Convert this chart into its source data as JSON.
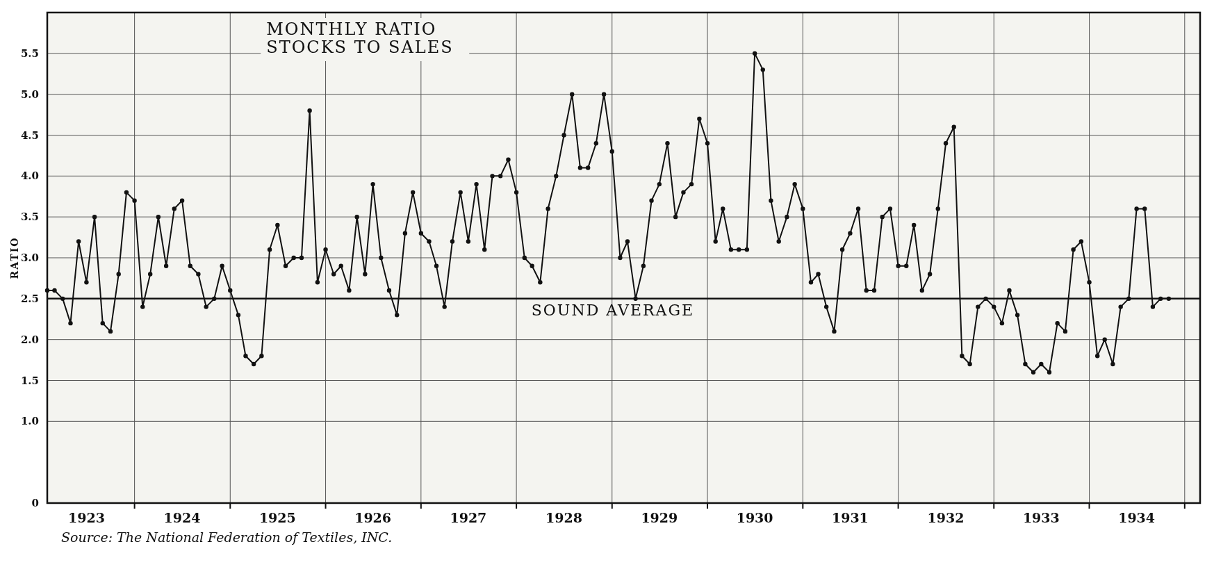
{
  "chart_data": {
    "type": "line",
    "title": "MONTHLY RATIO\nSTOCKS TO SALES",
    "ylabel": "RATIO",
    "annotations": [
      "Source: The National Federation of Textiles, INC."
    ],
    "x": [
      "1923-02",
      "1923-03",
      "1923-04",
      "1923-05",
      "1923-06",
      "1923-07",
      "1923-08",
      "1923-09",
      "1923-10",
      "1923-11",
      "1923-12",
      "1924-01",
      "1924-02",
      "1924-03",
      "1924-04",
      "1924-05",
      "1924-06",
      "1924-07",
      "1924-08",
      "1924-09",
      "1924-10",
      "1924-11",
      "1924-12",
      "1925-01",
      "1925-02",
      "1925-03",
      "1925-04",
      "1925-05",
      "1925-06",
      "1925-07",
      "1925-08",
      "1925-09",
      "1925-10",
      "1925-11",
      "1925-12",
      "1926-01",
      "1926-02",
      "1926-03",
      "1926-04",
      "1926-05",
      "1926-06",
      "1926-07",
      "1926-08",
      "1926-09",
      "1926-10",
      "1926-11",
      "1926-12",
      "1927-01",
      "1927-02",
      "1927-03",
      "1927-04",
      "1927-05",
      "1927-06",
      "1927-07",
      "1927-08",
      "1927-09",
      "1927-10",
      "1927-11",
      "1927-12",
      "1928-01",
      "1928-02",
      "1928-03",
      "1928-04",
      "1928-05",
      "1928-06",
      "1928-07",
      "1928-08",
      "1928-09",
      "1928-10",
      "1928-11",
      "1928-12",
      "1929-01",
      "1929-02",
      "1929-03",
      "1929-04",
      "1929-05",
      "1929-06",
      "1929-07",
      "1929-08",
      "1929-09",
      "1929-10",
      "1929-11",
      "1929-12",
      "1930-01",
      "1930-02",
      "1930-03",
      "1930-04",
      "1930-05",
      "1930-06",
      "1930-07",
      "1930-08",
      "1930-09",
      "1930-10",
      "1930-11",
      "1930-12",
      "1931-01",
      "1931-02",
      "1931-03",
      "1931-04",
      "1931-05",
      "1931-06",
      "1931-07",
      "1931-08",
      "1931-09",
      "1931-10",
      "1931-11",
      "1931-12",
      "1932-01",
      "1932-02",
      "1932-03",
      "1932-04",
      "1932-05",
      "1932-06",
      "1932-07",
      "1932-08",
      "1932-09",
      "1932-10",
      "1932-11",
      "1932-12",
      "1933-01",
      "1933-02",
      "1933-03",
      "1933-04",
      "1933-05",
      "1933-06",
      "1933-07",
      "1933-08",
      "1933-09",
      "1933-10",
      "1933-11",
      "1933-12",
      "1934-01",
      "1934-02",
      "1934-03",
      "1934-04",
      "1934-05",
      "1934-06",
      "1934-07",
      "1934-08",
      "1934-09",
      "1934-10",
      "1934-11"
    ],
    "series": [
      {
        "color": "#111111",
        "values": [
          2.6,
          2.6,
          2.5,
          2.2,
          3.2,
          2.7,
          3.5,
          2.2,
          2.1,
          2.8,
          3.8,
          3.7,
          2.4,
          2.8,
          3.5,
          2.9,
          3.6,
          3.7,
          2.9,
          2.8,
          2.4,
          2.5,
          2.9,
          2.6,
          2.3,
          1.8,
          1.7,
          1.8,
          3.1,
          3.4,
          2.9,
          3.0,
          3.0,
          4.8,
          2.7,
          3.1,
          2.8,
          2.9,
          2.6,
          3.5,
          2.8,
          3.9,
          3.0,
          2.6,
          2.3,
          3.3,
          3.8,
          3.3,
          3.2,
          2.9,
          2.4,
          3.2,
          3.8,
          3.2,
          3.9,
          3.1,
          4.0,
          4.0,
          4.2,
          3.8,
          3.0,
          2.9,
          2.7,
          3.6,
          4.0,
          4.5,
          5.0,
          4.1,
          4.1,
          4.4,
          5.0,
          4.3,
          3.0,
          3.2,
          2.5,
          2.9,
          3.7,
          3.9,
          4.4,
          3.5,
          3.8,
          3.9,
          4.7,
          4.4,
          3.2,
          3.6,
          3.1,
          3.1,
          3.1,
          5.5,
          5.3,
          3.7,
          3.2,
          3.5,
          3.9,
          3.6,
          2.7,
          2.8,
          2.4,
          2.1,
          3.1,
          3.3,
          3.6,
          2.6,
          2.6,
          3.5,
          3.6,
          2.9,
          2.9,
          3.4,
          2.6,
          2.8,
          3.6,
          4.4,
          4.6,
          1.8,
          1.7,
          2.4,
          2.5,
          2.4,
          2.2,
          2.6,
          2.3,
          1.7,
          1.6,
          1.7,
          1.6,
          2.2,
          2.1,
          3.1,
          3.2,
          2.7,
          1.8,
          2.0,
          1.7,
          2.4,
          2.5,
          3.6,
          3.6,
          2.4,
          2.5,
          2.5
        ]
      }
    ],
    "xlim": [
      "1923-02",
      "1935-03"
    ],
    "xticks": [
      {
        "value": "1923-07",
        "label": "1923"
      },
      {
        "value": "1924-01",
        "label": null
      },
      {
        "value": "1924-07",
        "label": "1924"
      },
      {
        "value": "1925-01",
        "label": null
      },
      {
        "value": "1925-07",
        "label": "1925"
      },
      {
        "value": "1926-01",
        "label": null
      },
      {
        "value": "1926-07",
        "label": "1926"
      },
      {
        "value": "1927-01",
        "label": null
      },
      {
        "value": "1927-07",
        "label": "1927"
      },
      {
        "value": "1928-01",
        "label": null
      },
      {
        "value": "1928-07",
        "label": "1928"
      },
      {
        "value": "1929-01",
        "label": null
      },
      {
        "value": "1929-07",
        "label": "1929"
      },
      {
        "value": "1930-01",
        "label": null
      },
      {
        "value": "1930-07",
        "label": "1930"
      },
      {
        "value": "1931-01",
        "label": null
      },
      {
        "value": "1931-07",
        "label": "1931"
      },
      {
        "value": "1932-01",
        "label": null
      },
      {
        "value": "1932-07",
        "label": "1932"
      },
      {
        "value": "1933-01",
        "label": null
      },
      {
        "value": "1933-07",
        "label": "1933"
      },
      {
        "value": "1934-01",
        "label": null
      },
      {
        "value": "1934-07",
        "label": "1934"
      },
      {
        "value": "1935-01",
        "label": null
      }
    ],
    "ylim": [
      0,
      6.0
    ],
    "yticks": [
      0,
      {
        "value": 1,
        "label": "1.0"
      },
      {
        "value": 1.5,
        "label": "1.5"
      },
      {
        "value": 2,
        "label": "2.0"
      },
      {
        "value": 2.5,
        "label": "2.5"
      },
      {
        "value": 3,
        "label": "3.0"
      },
      {
        "value": 3.5,
        "label": "3.5"
      },
      {
        "value": 4,
        "label": "4.0"
      },
      {
        "value": 4.5,
        "label": "4.5"
      },
      {
        "value": 5,
        "label": "5.0"
      },
      {
        "value": 5.5,
        "label": "5.5"
      }
    ],
    "ref_lines": [
      {
        "axis": "y",
        "value": 2.5,
        "label": "SOUND AVERAGE",
        "color": "#111111"
      }
    ],
    "grid": true,
    "marker": "circle",
    "line_style": "solid"
  }
}
